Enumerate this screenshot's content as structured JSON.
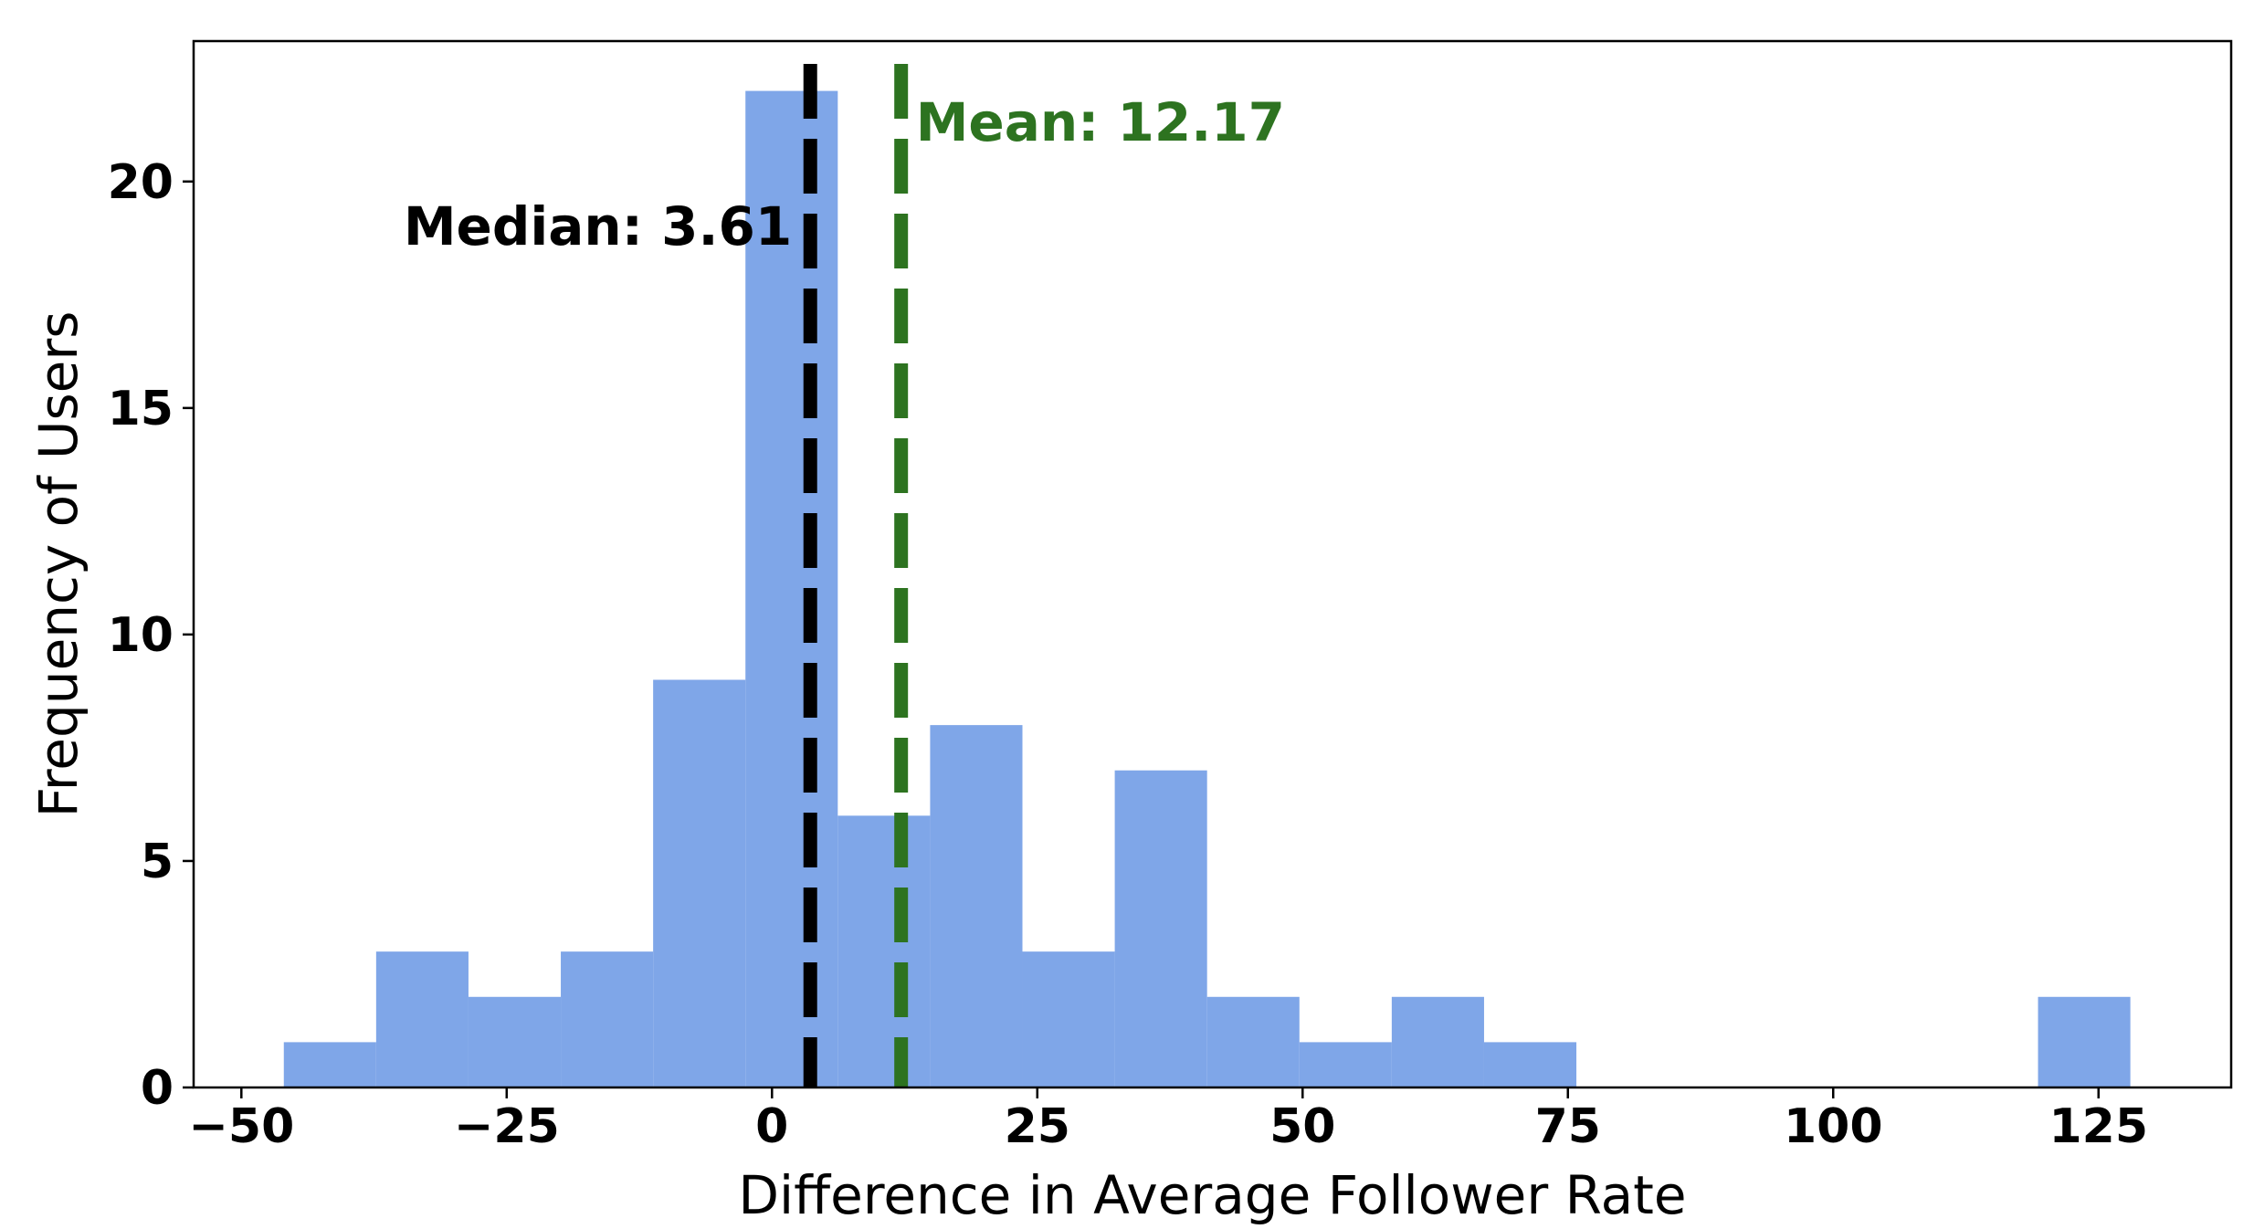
{
  "chart_data": {
    "type": "bar",
    "title": "",
    "xlabel": "Difference in Average Follower Rate",
    "ylabel": "Frequency of Users",
    "xlim": [
      -54.5,
      137.5
    ],
    "ylim": [
      0,
      23.1
    ],
    "xticks": [
      -50,
      -25,
      0,
      25,
      50,
      75,
      100,
      125
    ],
    "xtick_labels": [
      "−50",
      "−25",
      "0",
      "25",
      "50",
      "75",
      "100",
      "125"
    ],
    "yticks": [
      0,
      5,
      10,
      15,
      20
    ],
    "ytick_labels": [
      "0",
      "5",
      "10",
      "15",
      "20"
    ],
    "grid": false,
    "bar_color": "#7fa6e8",
    "bins": [
      {
        "start": -46.0,
        "end": -37.3,
        "count": 1
      },
      {
        "start": -37.3,
        "end": -28.6,
        "count": 3
      },
      {
        "start": -28.6,
        "end": -19.9,
        "count": 2
      },
      {
        "start": -19.9,
        "end": -11.2,
        "count": 3
      },
      {
        "start": -11.2,
        "end": -2.5,
        "count": 9
      },
      {
        "start": -2.5,
        "end": 6.2,
        "count": 22
      },
      {
        "start": 6.2,
        "end": 14.9,
        "count": 6
      },
      {
        "start": 14.9,
        "end": 23.6,
        "count": 8
      },
      {
        "start": 23.6,
        "end": 32.3,
        "count": 3
      },
      {
        "start": 32.3,
        "end": 41.0,
        "count": 7
      },
      {
        "start": 41.0,
        "end": 49.7,
        "count": 2
      },
      {
        "start": 49.7,
        "end": 58.4,
        "count": 1
      },
      {
        "start": 58.4,
        "end": 67.1,
        "count": 2
      },
      {
        "start": 67.1,
        "end": 75.8,
        "count": 1
      },
      {
        "start": 119.3,
        "end": 128.0,
        "count": 2
      }
    ],
    "reference_lines": [
      {
        "name": "median",
        "label": "Median: 3.61",
        "value": 3.61,
        "color": "#000000"
      },
      {
        "name": "mean",
        "label": "Mean: 12.17",
        "value": 12.17,
        "color": "#2d7320"
      }
    ]
  }
}
